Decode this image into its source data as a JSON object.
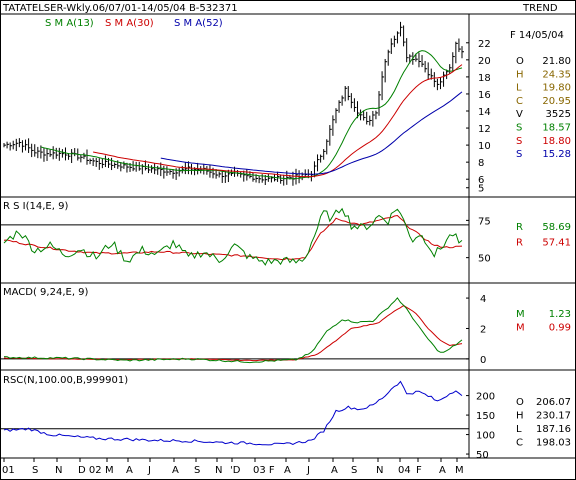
{
  "header": {
    "title": "TATATELSER-Wkly.06/07/01-14/05/04  B-532371",
    "trend_label": "TREND",
    "sma13_label": "S M A(13)",
    "sma30_label": "S M A(30)",
    "sma52_label": "S M A(52)",
    "date_label": "F 14/05/04"
  },
  "colors": {
    "price": "#000000",
    "sma13": "#008000",
    "sma30": "#cc0000",
    "sma52": "#0000aa",
    "rsi": "#008000",
    "rsi_avg": "#cc0000",
    "macd": "#008000",
    "macd_signal": "#cc0000",
    "rsc": "#0000cc",
    "olhc_text": "#886600",
    "frame": "#000000"
  },
  "price_info": [
    {
      "key": "O",
      "value": "21.80",
      "color": "#000000"
    },
    {
      "key": "H",
      "value": "24.35",
      "color": "#886600"
    },
    {
      "key": "L",
      "value": "19.80",
      "color": "#886600"
    },
    {
      "key": "C",
      "value": "20.95",
      "color": "#886600"
    },
    {
      "key": "V",
      "value": "3525",
      "color": "#000000"
    },
    {
      "key": "S",
      "value": "18.57",
      "color": "#008000"
    },
    {
      "key": "S",
      "value": "18.80",
      "color": "#cc0000"
    },
    {
      "key": "S",
      "value": "15.28",
      "color": "#0000aa"
    }
  ],
  "rsi_panel": {
    "label": "R S I(14,E, 9)",
    "values": [
      {
        "key": "R",
        "value": "58.69",
        "color": "#008000"
      },
      {
        "key": "R",
        "value": "57.41",
        "color": "#cc0000"
      }
    ]
  },
  "macd_panel": {
    "label": "MACD( 9,24,E, 9)",
    "values": [
      {
        "key": "M",
        "value": "1.23",
        "color": "#008000"
      },
      {
        "key": "M",
        "value": "0.99",
        "color": "#cc0000"
      }
    ]
  },
  "rsc_panel": {
    "label": "RSC(N,100.00,B,999901)",
    "values": [
      {
        "key": "O",
        "value": "206.07",
        "color": "#000000"
      },
      {
        "key": "H",
        "value": "230.17",
        "color": "#000000"
      },
      {
        "key": "L",
        "value": "187.16",
        "color": "#000000"
      },
      {
        "key": "C",
        "value": "198.03",
        "color": "#000000"
      }
    ]
  },
  "chart_data": [
    {
      "type": "line",
      "panel": "price",
      "x_ticks": [
        "01",
        "S",
        "N",
        "D 02",
        "M",
        "A",
        "J",
        "A",
        "S",
        "N",
        "'D",
        "03 F",
        "A",
        "J",
        "A",
        "S",
        "N",
        "04",
        "F",
        "A",
        "M"
      ],
      "y_ticks": [
        "22",
        "20",
        "18",
        "16",
        "14",
        "12",
        "10",
        "8",
        "6",
        "5"
      ],
      "ylim": [
        4.5,
        23.5
      ],
      "n_weeks": 150,
      "close_knots": [
        [
          0,
          10
        ],
        [
          5,
          10.3
        ],
        [
          10,
          9.2
        ],
        [
          14,
          9
        ],
        [
          20,
          9
        ],
        [
          25,
          8.6
        ],
        [
          30,
          8
        ],
        [
          40,
          7.5
        ],
        [
          50,
          7.1
        ],
        [
          55,
          6.9
        ],
        [
          60,
          7.2
        ],
        [
          65,
          7.1
        ],
        [
          70,
          6.5
        ],
        [
          75,
          6.5
        ],
        [
          80,
          6.3
        ],
        [
          85,
          6.0
        ],
        [
          90,
          6.1
        ],
        [
          96,
          6.3
        ],
        [
          100,
          6.7
        ],
        [
          104,
          9.5
        ],
        [
          108,
          14
        ],
        [
          111,
          16.5
        ],
        [
          115,
          14
        ],
        [
          118,
          12.6
        ],
        [
          121,
          14
        ],
        [
          124,
          20
        ],
        [
          126,
          22
        ],
        [
          128,
          23
        ],
        [
          129,
          24
        ],
        [
          131,
          20.5
        ],
        [
          135,
          20
        ],
        [
          139,
          18
        ],
        [
          141,
          17
        ],
        [
          143,
          18
        ],
        [
          145,
          19
        ],
        [
          147,
          22
        ],
        [
          149,
          20.95
        ]
      ],
      "series": [
        {
          "name": "S M A(13)",
          "period": 13
        },
        {
          "name": "S M A(30)",
          "period": 30
        },
        {
          "name": "S M A(52)",
          "period": 52
        }
      ]
    },
    {
      "type": "line",
      "panel": "rsi",
      "y_ticks": [
        "75",
        "50"
      ],
      "ylim": [
        35,
        88
      ],
      "reference_line": 72,
      "knots": [
        [
          0,
          60
        ],
        [
          5,
          68
        ],
        [
          10,
          55
        ],
        [
          15,
          58
        ],
        [
          20,
          52
        ],
        [
          25,
          56
        ],
        [
          30,
          50
        ],
        [
          35,
          60
        ],
        [
          40,
          48
        ],
        [
          45,
          55
        ],
        [
          50,
          52
        ],
        [
          55,
          60
        ],
        [
          60,
          50
        ],
        [
          65,
          54
        ],
        [
          70,
          48
        ],
        [
          75,
          58
        ],
        [
          80,
          50
        ],
        [
          85,
          47
        ],
        [
          90,
          48
        ],
        [
          95,
          47
        ],
        [
          98,
          50
        ],
        [
          101,
          65
        ],
        [
          104,
          80
        ],
        [
          107,
          76
        ],
        [
          110,
          85
        ],
        [
          113,
          72
        ],
        [
          116,
          70
        ],
        [
          119,
          72
        ],
        [
          122,
          78
        ],
        [
          125,
          75
        ],
        [
          128,
          84
        ],
        [
          131,
          70
        ],
        [
          133,
          62
        ],
        [
          135,
          66
        ],
        [
          138,
          60
        ],
        [
          140,
          52
        ],
        [
          142,
          56
        ],
        [
          144,
          62
        ],
        [
          146,
          66
        ],
        [
          148,
          60
        ],
        [
          149,
          58.69
        ]
      ],
      "signal_knots": [
        [
          0,
          62
        ],
        [
          10,
          58
        ],
        [
          20,
          55
        ],
        [
          30,
          53
        ],
        [
          40,
          53
        ],
        [
          50,
          54
        ],
        [
          60,
          53
        ],
        [
          70,
          52
        ],
        [
          80,
          51
        ],
        [
          90,
          49
        ],
        [
          98,
          50
        ],
        [
          103,
          66
        ],
        [
          108,
          76
        ],
        [
          112,
          74
        ],
        [
          116,
          72
        ],
        [
          120,
          74
        ],
        [
          124,
          76
        ],
        [
          128,
          78
        ],
        [
          132,
          70
        ],
        [
          136,
          64
        ],
        [
          140,
          58
        ],
        [
          144,
          57
        ],
        [
          149,
          57.41
        ]
      ]
    },
    {
      "type": "line",
      "panel": "macd",
      "y_ticks": [
        "4",
        "2",
        "0"
      ],
      "ylim": [
        -0.6,
        4.4
      ],
      "zero_line": 0,
      "knots": [
        [
          0,
          0.1
        ],
        [
          20,
          0.05
        ],
        [
          40,
          -0.1
        ],
        [
          60,
          0.0
        ],
        [
          80,
          -0.2
        ],
        [
          95,
          -0.05
        ],
        [
          100,
          0.4
        ],
        [
          105,
          1.8
        ],
        [
          110,
          2.6
        ],
        [
          115,
          2.4
        ],
        [
          120,
          2.5
        ],
        [
          124,
          3.2
        ],
        [
          128,
          4.0
        ],
        [
          132,
          3.0
        ],
        [
          136,
          1.8
        ],
        [
          140,
          0.8
        ],
        [
          142,
          0.4
        ],
        [
          144,
          0.5
        ],
        [
          146,
          0.8
        ],
        [
          149,
          1.23
        ]
      ],
      "signal_knots": [
        [
          0,
          0.05
        ],
        [
          20,
          0.0
        ],
        [
          40,
          -0.05
        ],
        [
          60,
          0.0
        ],
        [
          80,
          -0.1
        ],
        [
          95,
          -0.05
        ],
        [
          102,
          0.3
        ],
        [
          108,
          1.2
        ],
        [
          113,
          2.0
        ],
        [
          118,
          2.2
        ],
        [
          122,
          2.4
        ],
        [
          126,
          3.0
        ],
        [
          130,
          3.5
        ],
        [
          134,
          3.0
        ],
        [
          138,
          2.0
        ],
        [
          142,
          1.2
        ],
        [
          145,
          0.9
        ],
        [
          149,
          0.99
        ]
      ]
    },
    {
      "type": "line",
      "panel": "rsc",
      "y_ticks": [
        "200",
        "150",
        "100",
        "50"
      ],
      "ylim": [
        45,
        240
      ],
      "reference_line": 115,
      "knots": [
        [
          0,
          110
        ],
        [
          8,
          115
        ],
        [
          15,
          100
        ],
        [
          22,
          95
        ],
        [
          30,
          90
        ],
        [
          40,
          88
        ],
        [
          50,
          85
        ],
        [
          60,
          84
        ],
        [
          70,
          80
        ],
        [
          80,
          78
        ],
        [
          90,
          74
        ],
        [
          96,
          80
        ],
        [
          100,
          85
        ],
        [
          104,
          110
        ],
        [
          108,
          160
        ],
        [
          112,
          170
        ],
        [
          116,
          165
        ],
        [
          120,
          175
        ],
        [
          124,
          200
        ],
        [
          127,
          225
        ],
        [
          129,
          235
        ],
        [
          131,
          205
        ],
        [
          135,
          210
        ],
        [
          139,
          195
        ],
        [
          141,
          185
        ],
        [
          144,
          200
        ],
        [
          147,
          215
        ],
        [
          149,
          198.03
        ]
      ]
    }
  ]
}
